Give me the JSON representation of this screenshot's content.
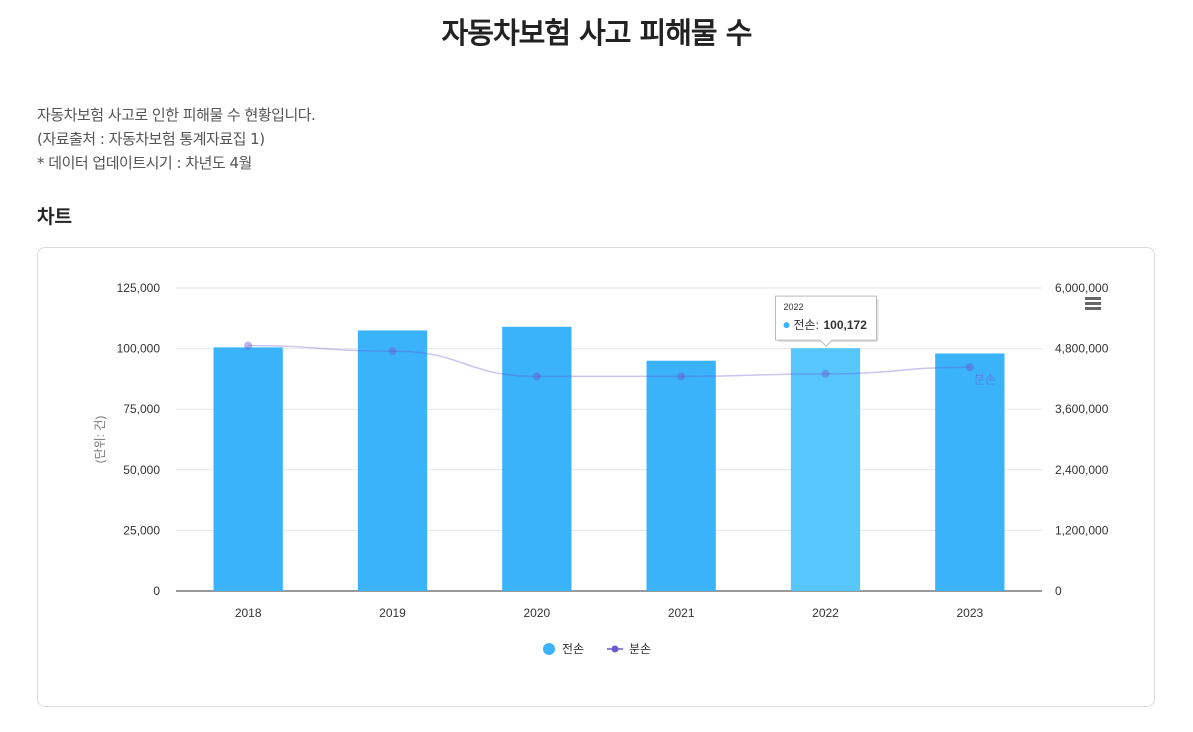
{
  "page": {
    "title": "자동차보험 사고 피해물 수",
    "description": [
      "자동차보험 사고로 인한 피해물 수 현황입니다.",
      "(자료출처 : 자동차보험 통계자료집 1)",
      "* 데이터 업데이트시기 : 차년도 4월"
    ],
    "section_title": "차트"
  },
  "menu_icon": "hamburger-menu-icon",
  "chart_data": {
    "type": "bar",
    "categories": [
      "2018",
      "2019",
      "2020",
      "2021",
      "2022",
      "2023"
    ],
    "series": [
      {
        "name": "전손",
        "type": "bar",
        "axis": "left",
        "color": "#3ab3fb",
        "highlight_color": "#57c6fd",
        "values": [
          100500,
          107500,
          109000,
          95000,
          100172,
          98000
        ]
      },
      {
        "name": "분손",
        "type": "line",
        "axis": "right",
        "color": "#6a5acd",
        "values": [
          4860000,
          4750000,
          4250000,
          4250000,
          4300000,
          4430000
        ]
      }
    ],
    "ylabel": "(단위: 건)",
    "ylim": [
      0,
      125000
    ],
    "yticks": [
      "0",
      "25,000",
      "50,000",
      "75,000",
      "100,000",
      "125,000"
    ],
    "y2lim": [
      0,
      6000000
    ],
    "y2ticks": [
      "0",
      "1,200,000",
      "2,400,000",
      "3,600,000",
      "4,800,000",
      "6,000,000"
    ],
    "line_end_label": "분손",
    "legend": [
      "전손",
      "분손"
    ],
    "legend_position": "bottom-center",
    "grid": true,
    "tooltip": {
      "category": "2022",
      "series": "전손",
      "value_text": "100,172",
      "category_index": 4
    }
  }
}
